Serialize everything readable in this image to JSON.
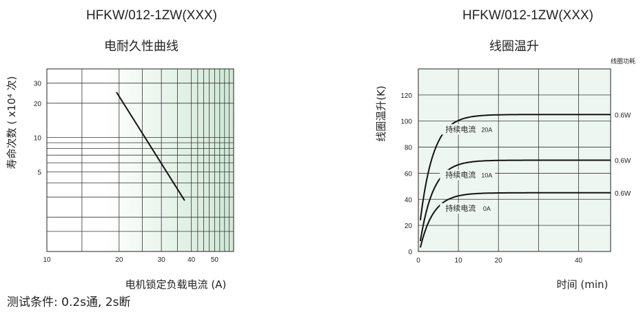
{
  "chart_data": [
    {
      "type": "line",
      "model": "HFKW/012-1ZW(XXX)",
      "title": "电耐久性曲线",
      "xlabel": "电机锁定负载电流 (A)",
      "ylabel": "寿命次数 ( x10⁴ 次)",
      "xscale": "log",
      "yscale": "log",
      "xlim": [
        10,
        60
      ],
      "ylim": [
        1,
        40
      ],
      "xticks": [
        10,
        20,
        30,
        40,
        50
      ],
      "yticks": [
        5,
        10,
        20,
        30
      ],
      "series": [
        {
          "x": [
            19.5,
            37.5
          ],
          "y": [
            25,
            2.8
          ]
        }
      ]
    },
    {
      "type": "line",
      "model": "HFKW/012-1ZW(XXX)",
      "title": "线圈温升",
      "power_header": "线圈功耗",
      "xlabel": "时间 (min)",
      "ylabel": "线圈温升(K)",
      "xlim": [
        0,
        48
      ],
      "ylim": [
        0,
        140
      ],
      "xticks": [
        0,
        10,
        20,
        40
      ],
      "yticks": [
        0,
        20,
        40,
        60,
        80,
        100,
        120
      ],
      "series": [
        {
          "name": "持续电流",
          "current": "20A",
          "power": "0.6W",
          "plateau": 105,
          "start": 24
        },
        {
          "name": "持续电流",
          "current": "10A",
          "power": "0.6W",
          "plateau": 70,
          "start": 8
        },
        {
          "name": "持续电流",
          "current": "0A",
          "power": "0.6W",
          "plateau": 45,
          "start": 3
        }
      ]
    }
  ],
  "footnote": "测试条件: 0.2s通, 2s断"
}
